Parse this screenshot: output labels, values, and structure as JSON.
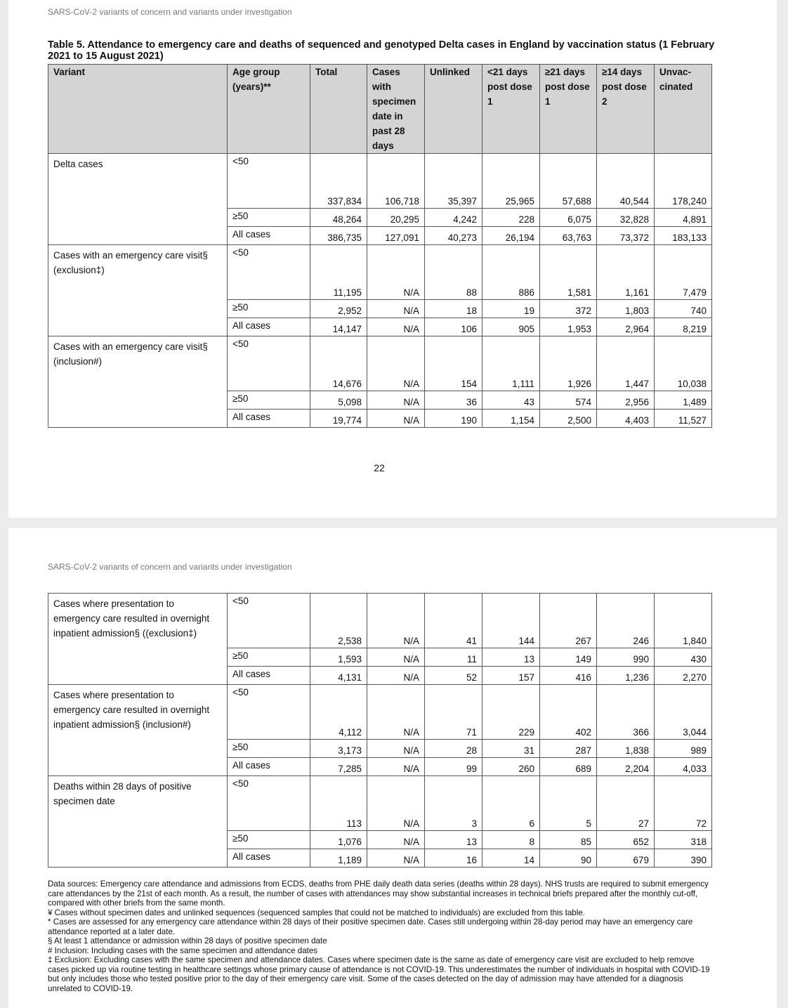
{
  "page1": {
    "running_header": "SARS-CoV-2 variants of concern and variants under investigation",
    "caption": "Table 5. Attendance to emergency care and deaths of sequenced and genotyped Delta cases in England by vaccination status (1 February 2021 to 15 August 2021)",
    "columns": [
      "Variant",
      "Age group (years)**",
      "Total",
      "Cases with specimen date in past 28 days",
      "Unlinked",
      "<21 days post dose 1",
      "≥21 days post dose 1",
      "≥14 days post dose 2",
      "Unvac-cinated"
    ],
    "groups": [
      {
        "variant": "Delta cases",
        "rows": [
          [
            "<50",
            "337,834",
            "106,718",
            "35,397",
            "25,965",
            "57,688",
            "40,544",
            "178,240"
          ],
          [
            "≥50",
            "48,264",
            "20,295",
            "4,242",
            "228",
            "6,075",
            "32,828",
            "4,891"
          ],
          [
            "All cases",
            "386,735",
            "127,091",
            "40,273",
            "26,194",
            "63,763",
            "73,372",
            "183,133"
          ]
        ]
      },
      {
        "variant": "Cases with an emergency care visit§ (exclusion‡)",
        "rows": [
          [
            "<50",
            "11,195",
            "N/A",
            "88",
            "886",
            "1,581",
            "1,161",
            "7,479"
          ],
          [
            "≥50",
            "2,952",
            "N/A",
            "18",
            "19",
            "372",
            "1,803",
            "740"
          ],
          [
            "All cases",
            "14,147",
            "N/A",
            "106",
            "905",
            "1,953",
            "2,964",
            "8,219"
          ]
        ]
      },
      {
        "variant": "Cases with an emergency care visit§ (inclusion#)",
        "rows": [
          [
            "<50",
            "14,676",
            "N/A",
            "154",
            "1,111",
            "1,926",
            "1,447",
            "10,038"
          ],
          [
            "≥50",
            "5,098",
            "N/A",
            "36",
            "43",
            "574",
            "2,956",
            "1,489"
          ],
          [
            "All cases",
            "19,774",
            "N/A",
            "190",
            "1,154",
            "2,500",
            "4,403",
            "11,527"
          ]
        ]
      }
    ],
    "page_number": "22"
  },
  "page2": {
    "running_header": "SARS-CoV-2 variants of concern and variants under investigation",
    "groups": [
      {
        "variant": "Cases where presentation to emergency care resulted in overnight inpatient admission§ ((exclusion‡)",
        "rows": [
          [
            "<50",
            "2,538",
            "N/A",
            "41",
            "144",
            "267",
            "246",
            "1,840"
          ],
          [
            "≥50",
            "1,593",
            "N/A",
            "11",
            "13",
            "149",
            "990",
            "430"
          ],
          [
            "All cases",
            "4,131",
            "N/A",
            "52",
            "157",
            "416",
            "1,236",
            "2,270"
          ]
        ]
      },
      {
        "variant": "Cases where presentation to emergency care resulted in overnight inpatient admission§ (inclusion#)",
        "rows": [
          [
            "<50",
            "4,112",
            "N/A",
            "71",
            "229",
            "402",
            "366",
            "3,044"
          ],
          [
            "≥50",
            "3,173",
            "N/A",
            "28",
            "31",
            "287",
            "1,838",
            "989"
          ],
          [
            "All cases",
            "7,285",
            "N/A",
            "99",
            "260",
            "689",
            "2,204",
            "4,033"
          ]
        ]
      },
      {
        "variant": "Deaths within 28 days of positive specimen date",
        "rows": [
          [
            "<50",
            "113",
            "N/A",
            "3",
            "6",
            "5",
            "27",
            "72"
          ],
          [
            "≥50",
            "1,076",
            "N/A",
            "13",
            "8",
            "85",
            "652",
            "318"
          ],
          [
            "All cases",
            "1,189",
            "N/A",
            "16",
            "14",
            "90",
            "679",
            "390"
          ]
        ]
      }
    ],
    "footnotes": [
      "Data sources: Emergency care attendance and admissions from ECDS, deaths from PHE daily death data series (deaths within 28 days). NHS trusts are required to submit emergency care attendances by the 21st of each month. As a result, the number of cases with attendances may show substantial increases in technical briefs prepared after the monthly cut-off, compared with other briefs from the same month.",
      "¥ Cases without specimen dates and unlinked sequences (sequenced samples that could not be matched to individuals) are excluded from this table.",
      "* Cases are assessed for any emergency care attendance within 28 days of their positive specimen date. Cases still undergoing within 28-day period may have an emergency care attendance reported at a later date.",
      "§ At least 1 attendance or admission within 28 days of positive specimen date",
      "# Inclusion: Including cases with the same specimen and attendance dates",
      "‡ Exclusion: Excluding cases with the same specimen and attendance dates. Cases where specimen date is the same as date of emergency care visit are excluded to help remove cases picked up via routine testing in healthcare settings whose primary cause of attendance is not COVID-19. This underestimates the number of individuals in hospital with COVID-19 but only includes those who tested positive prior to the day of their emergency care visit. Some of the cases detected on the day of admission may have attended for a diagnosis unrelated to COVID-19."
    ]
  }
}
